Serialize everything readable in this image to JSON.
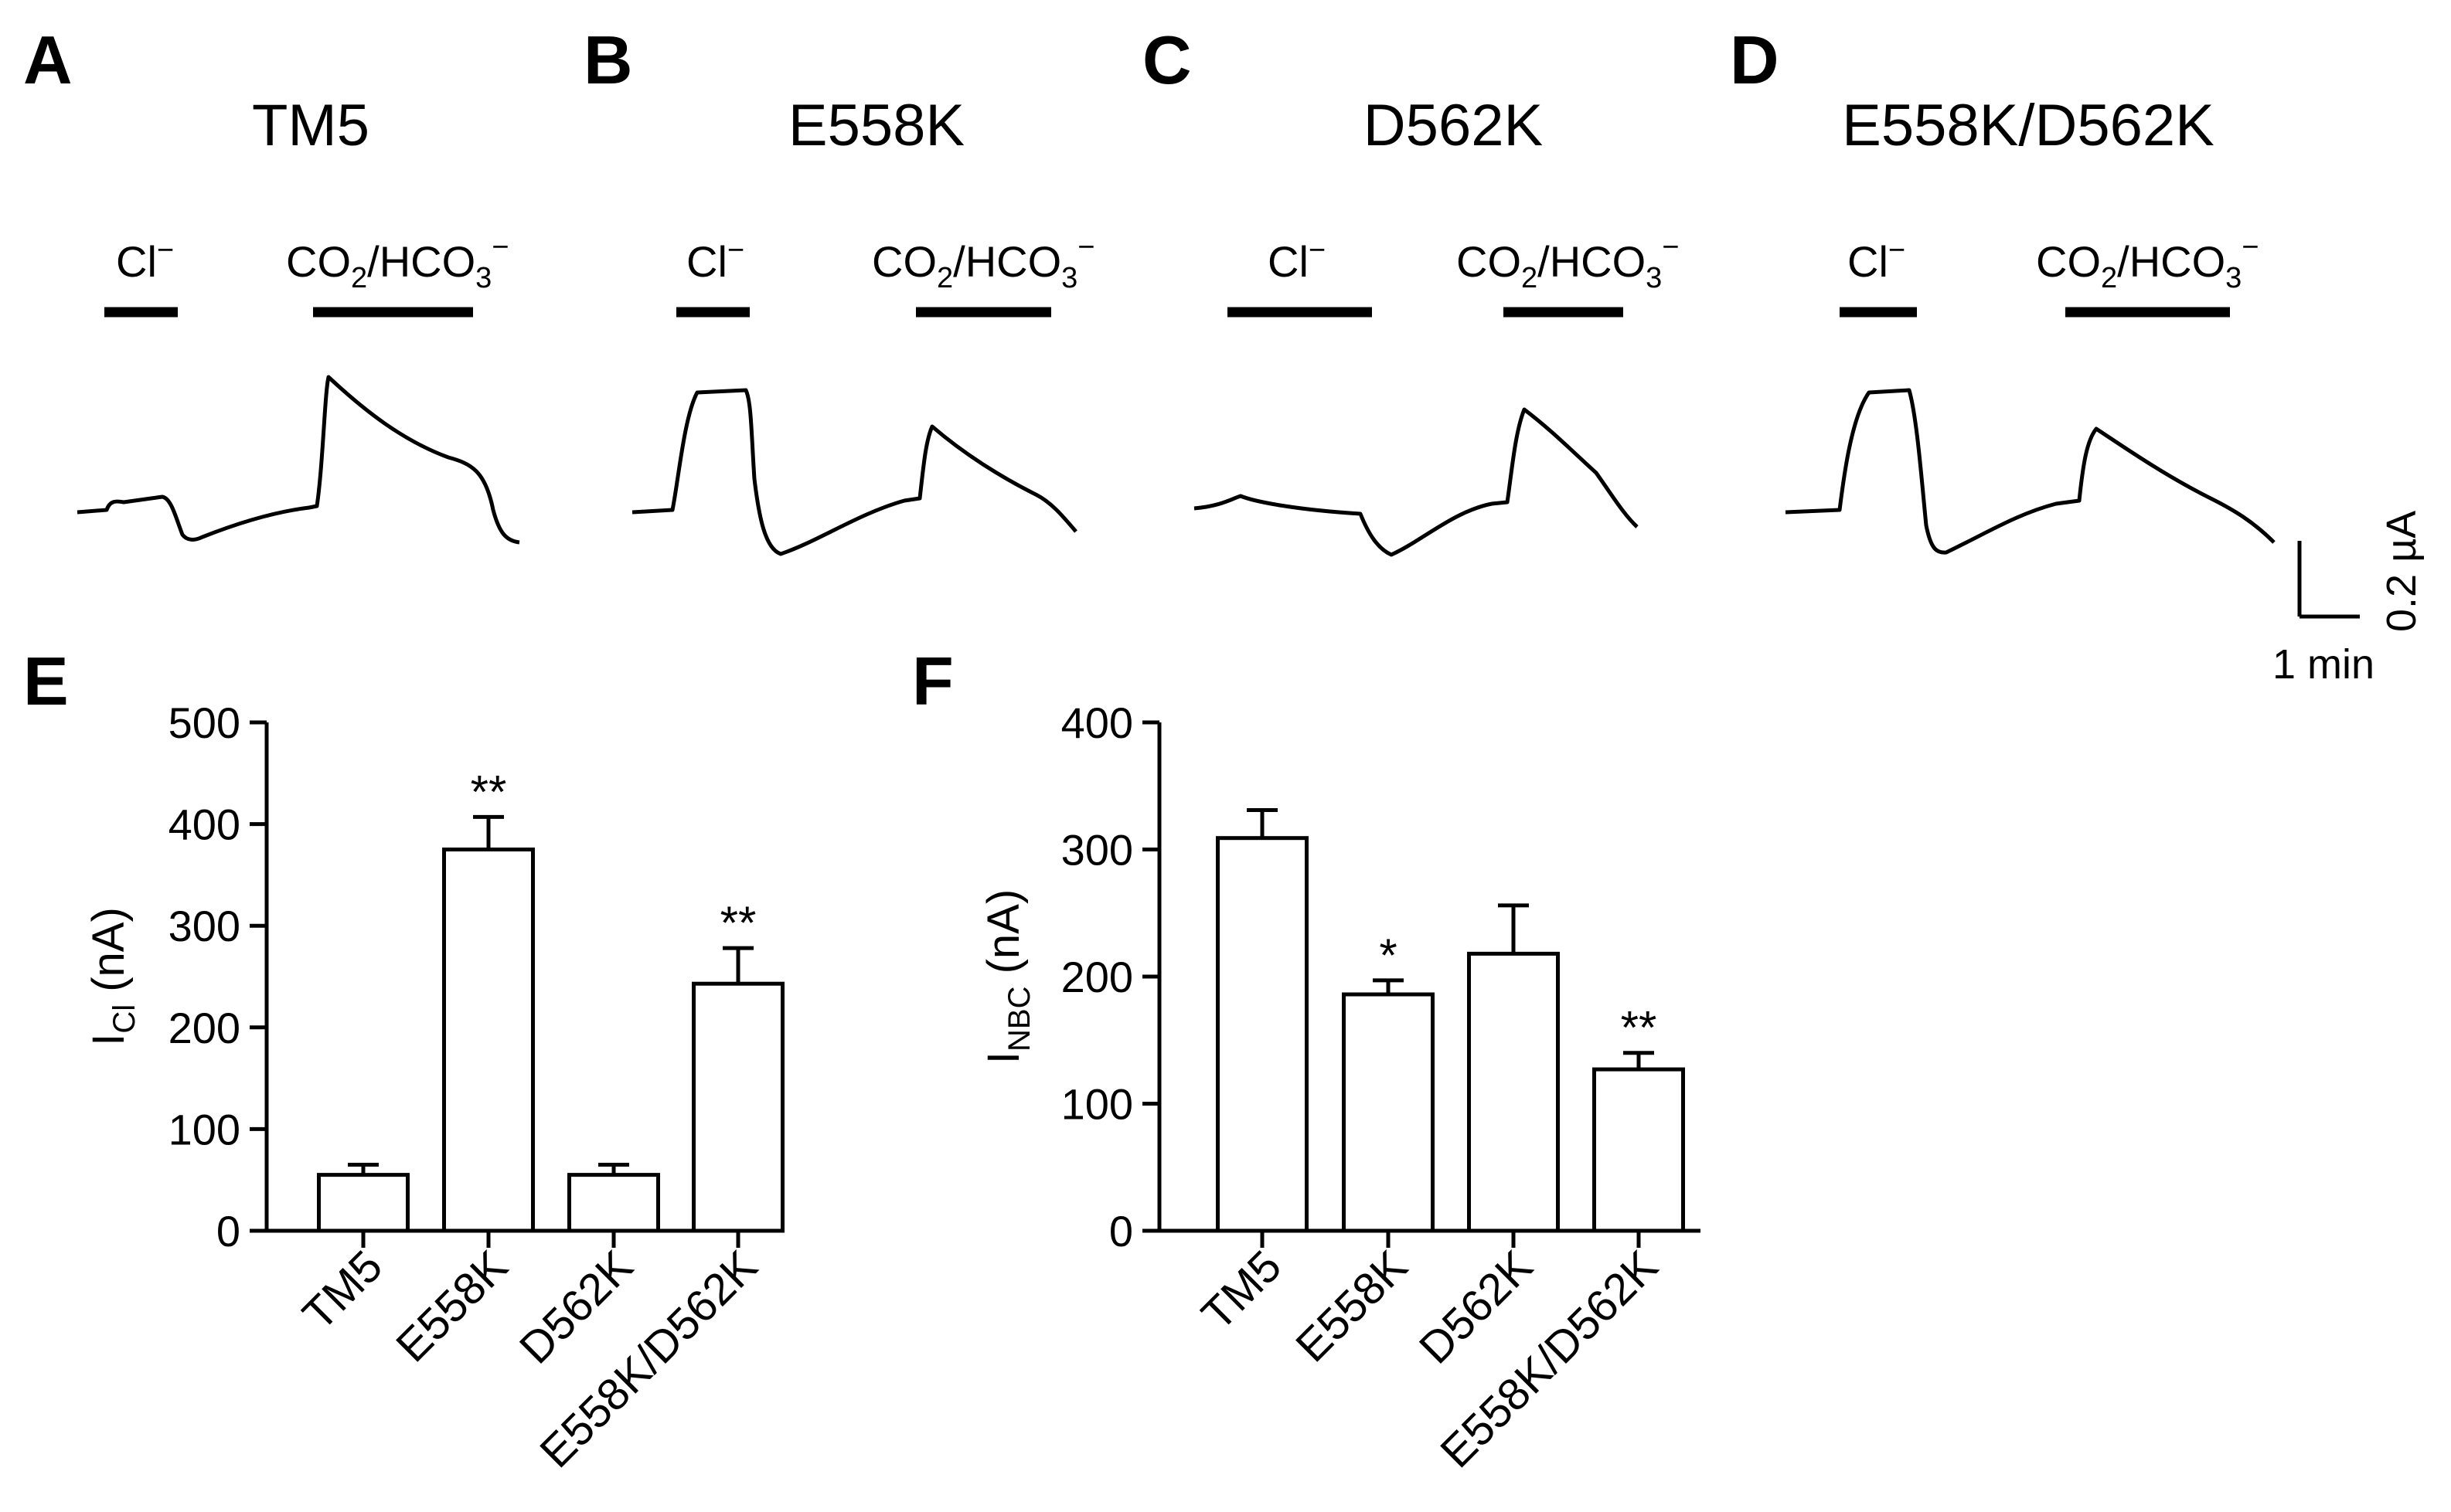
{
  "panels": {
    "A": {
      "letter": "A",
      "title": "TM5"
    },
    "B": {
      "letter": "B",
      "title": "E558K"
    },
    "C": {
      "letter": "C",
      "title": "D562K"
    },
    "D": {
      "letter": "D",
      "title": "E558K/D562K"
    },
    "E": {
      "letter": "E"
    },
    "F": {
      "letter": "F"
    }
  },
  "solutions": {
    "cl": "Cl",
    "cl_sup": "−",
    "co2_a": "CO",
    "co2_sub": "2",
    "co2_b": "/HCO",
    "hco3_sub": "3",
    "hco3_sup": "−"
  },
  "scale_bar": {
    "vertical": "0.2 µA",
    "horizontal": "1 min"
  },
  "chart_data": [
    {
      "type": "bar",
      "panel": "E",
      "categories": [
        "TM5",
        "E558K",
        "D562K",
        "E558K/D562K"
      ],
      "values": [
        55,
        375,
        55,
        243
      ],
      "errors": [
        10,
        32,
        10,
        35
      ],
      "annotations": [
        "",
        "**",
        "",
        "**"
      ],
      "ylabel_main": "I",
      "ylabel_sub": "Cl",
      "ylabel_unit": " (nA)",
      "ylim": [
        0,
        500
      ],
      "yticks": [
        0,
        100,
        200,
        300,
        400,
        500
      ]
    },
    {
      "type": "bar",
      "panel": "F",
      "categories": [
        "TM5",
        "E558K",
        "D562K",
        "E558K/D562K"
      ],
      "values": [
        309,
        186,
        218,
        127
      ],
      "errors": [
        22,
        11,
        38,
        13
      ],
      "annotations": [
        "",
        "*",
        "",
        "**"
      ],
      "ylabel_main": "I",
      "ylabel_sub": "NBC",
      "ylabel_unit": " (nA)",
      "ylim": [
        0,
        400
      ],
      "yticks": [
        0,
        100,
        200,
        300,
        400
      ]
    }
  ]
}
